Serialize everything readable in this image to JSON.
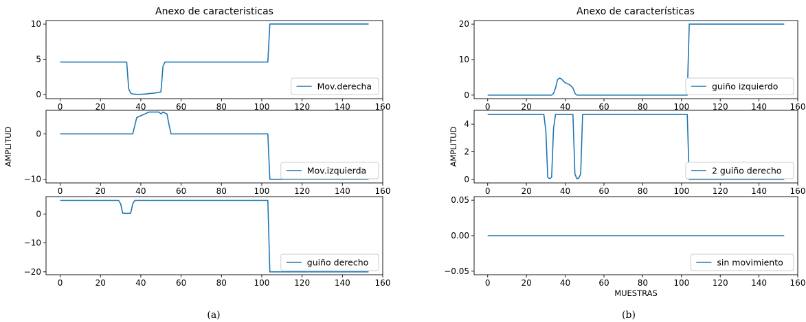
{
  "captions": [
    "(a)",
    "(b)"
  ],
  "chart_data": [
    {
      "type": "line",
      "panel": "a",
      "title": "Anexo de caracteristicas",
      "xlabel": "",
      "ylabel": "",
      "xlim": [
        -7,
        160
      ],
      "ylim": [
        -0.6,
        10.5
      ],
      "xticks": [
        0,
        20,
        40,
        60,
        80,
        100,
        120,
        140,
        160
      ],
      "yticks": [
        0,
        5,
        10
      ],
      "legend_position": "lower-right",
      "grid": false,
      "color": "#1f77b4",
      "series": [
        {
          "name": "Mov.derecha",
          "points": [
            [
              0,
              4.6
            ],
            [
              33,
              4.6
            ],
            [
              34,
              0.8
            ],
            [
              35,
              0.2
            ],
            [
              36,
              0.05
            ],
            [
              39,
              0.0
            ],
            [
              42,
              0.05
            ],
            [
              45,
              0.15
            ],
            [
              47,
              0.2
            ],
            [
              50,
              0.35
            ],
            [
              51,
              4.0
            ],
            [
              52,
              4.6
            ],
            [
              103,
              4.6
            ],
            [
              104,
              10.0
            ],
            [
              153,
              10.0
            ]
          ]
        }
      ]
    },
    {
      "type": "line",
      "panel": "a",
      "title": "",
      "xlabel": "",
      "ylabel": "AMPLITUD",
      "xlim": [
        -7,
        160
      ],
      "ylim": [
        -10.8,
        5.2
      ],
      "xticks": [
        0,
        20,
        40,
        60,
        80,
        100,
        120,
        140,
        160
      ],
      "yticks": [
        -10,
        0
      ],
      "legend_position": "lower-right",
      "grid": false,
      "color": "#1f77b4",
      "series": [
        {
          "name": "Mov.izquierda",
          "points": [
            [
              0,
              0
            ],
            [
              36,
              0
            ],
            [
              38,
              3.6
            ],
            [
              40,
              4.0
            ],
            [
              42,
              4.4
            ],
            [
              44,
              4.8
            ],
            [
              46,
              4.8
            ],
            [
              49,
              4.8
            ],
            [
              50,
              4.4
            ],
            [
              51,
              4.8
            ],
            [
              53,
              4.4
            ],
            [
              54,
              2.0
            ],
            [
              55,
              0
            ],
            [
              103,
              0
            ],
            [
              104,
              -10.0
            ],
            [
              153,
              -10.0
            ]
          ]
        }
      ]
    },
    {
      "type": "line",
      "panel": "a",
      "title": "",
      "xlabel": "",
      "ylabel": "",
      "xlim": [
        -7,
        160
      ],
      "ylim": [
        -21,
        6
      ],
      "xticks": [
        0,
        20,
        40,
        60,
        80,
        100,
        120,
        140,
        160
      ],
      "yticks": [
        -20,
        -10,
        0
      ],
      "legend_position": "lower-right",
      "grid": false,
      "color": "#1f77b4",
      "series": [
        {
          "name": "guiño derecho",
          "points": [
            [
              0,
              4.7
            ],
            [
              29,
              4.7
            ],
            [
              30,
              3.5
            ],
            [
              31,
              0.3
            ],
            [
              33,
              0.2
            ],
            [
              35,
              0.3
            ],
            [
              36,
              3.5
            ],
            [
              37,
              4.7
            ],
            [
              103,
              4.7
            ],
            [
              104,
              -20.0
            ],
            [
              153,
              -20.0
            ]
          ]
        }
      ]
    },
    {
      "type": "line",
      "panel": "b",
      "title": "Anexo de características",
      "xlabel": "",
      "ylabel": "",
      "xlim": [
        -7,
        160
      ],
      "ylim": [
        -1.0,
        21.0
      ],
      "xticks": [
        0,
        20,
        40,
        60,
        80,
        100,
        120,
        140,
        160
      ],
      "yticks": [
        0,
        10,
        20
      ],
      "legend_position": "lower-right",
      "grid": false,
      "color": "#1f77b4",
      "series": [
        {
          "name": "guiño izquierdo",
          "points": [
            [
              0,
              0
            ],
            [
              33,
              0
            ],
            [
              34,
              0.5
            ],
            [
              35,
              2.0
            ],
            [
              36,
              4.3
            ],
            [
              37,
              4.8
            ],
            [
              38,
              4.6
            ],
            [
              39,
              4.0
            ],
            [
              40,
              3.5
            ],
            [
              42,
              3.0
            ],
            [
              43,
              2.6
            ],
            [
              44,
              2.0
            ],
            [
              45,
              0.5
            ],
            [
              46,
              0
            ],
            [
              103,
              0
            ],
            [
              104,
              20.0
            ],
            [
              153,
              20.0
            ]
          ]
        }
      ]
    },
    {
      "type": "line",
      "panel": "b",
      "title": "",
      "xlabel": "",
      "ylabel": "AMPLITUD",
      "xlim": [
        -7,
        160
      ],
      "ylim": [
        -0.25,
        5.0
      ],
      "xticks": [
        0,
        20,
        40,
        60,
        80,
        100,
        120,
        140,
        160
      ],
      "yticks": [
        0,
        2,
        4
      ],
      "legend_position": "lower-right",
      "grid": false,
      "color": "#1f77b4",
      "series": [
        {
          "name": "2 guiño derecho",
          "points": [
            [
              0,
              4.7
            ],
            [
              29,
              4.7
            ],
            [
              30,
              3.5
            ],
            [
              31,
              0.15
            ],
            [
              32,
              0.05
            ],
            [
              33,
              0.15
            ],
            [
              34,
              3.7
            ],
            [
              35,
              4.7
            ],
            [
              44,
              4.7
            ],
            [
              45,
              0.4
            ],
            [
              46,
              0.05
            ],
            [
              47,
              0.1
            ],
            [
              48,
              0.4
            ],
            [
              49,
              4.7
            ],
            [
              103,
              4.7
            ],
            [
              104,
              0
            ],
            [
              153,
              0
            ]
          ]
        }
      ]
    },
    {
      "type": "line",
      "panel": "b",
      "title": "",
      "xlabel": "MUESTRAS",
      "ylabel": "",
      "xlim": [
        -7,
        160
      ],
      "ylim": [
        -0.055,
        0.055
      ],
      "xticks": [
        0,
        20,
        40,
        60,
        80,
        100,
        120,
        140,
        160
      ],
      "yticks": [
        -0.05,
        0.0,
        0.05
      ],
      "ytick_labels": [
        "−0.05",
        "0.00",
        "0.05"
      ],
      "legend_position": "lower-right",
      "grid": false,
      "color": "#1f77b4",
      "series": [
        {
          "name": "sin movimiento",
          "points": [
            [
              0,
              0
            ],
            [
              153,
              0
            ]
          ]
        }
      ]
    }
  ]
}
